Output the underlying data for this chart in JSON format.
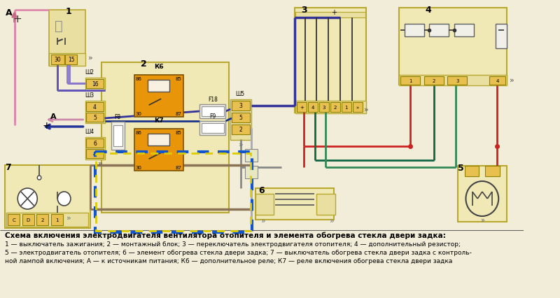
{
  "bg_color": "#f2edd8",
  "block_fill": "#e8dfa0",
  "block_edge": "#b8a830",
  "relay_fill": "#e8950a",
  "relay_edge": "#7a5000",
  "pin_fill": "#e8c050",
  "pin_edge": "#908000",
  "fuse_fill": "#f0f0e8",
  "fuse_edge": "#909090",
  "title": "Схема включения электродвигателя вентилятора отопителя и элемента обогрева стекла двери задка:",
  "leg1": "1 — выключатель зажигания; 2 — монтажный блок; 3 — переключатель электродвигателя отопителя; 4 — дополнительный резистор;",
  "leg2": "5 — электродвигатель отопителя; 6 — элемент обогрева стекла двери задка; 7 — выключатель обогрева стекла двери задка с контроль-",
  "leg3": "ной лампой включения; А — к источникам питания; К6 — дополнительное реле; К7 — реле включения обогрева стекла двери задка"
}
